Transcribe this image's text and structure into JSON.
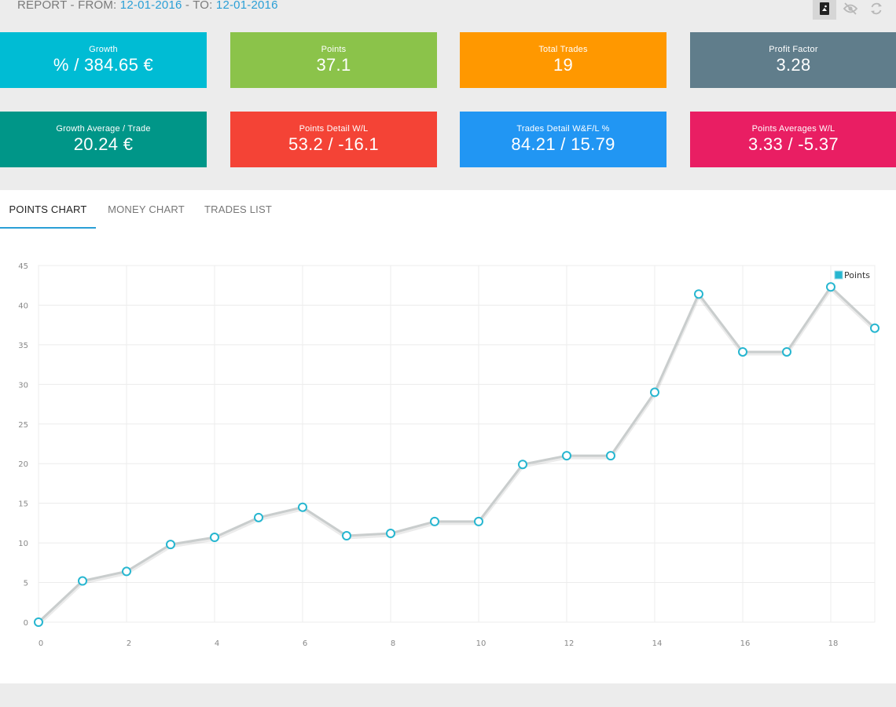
{
  "header": {
    "report_prefix": "REPORT - FROM:",
    "from_date": "12-01-2016",
    "to_label": "- TO:",
    "to_date": "12-01-2016"
  },
  "stats": [
    {
      "label": "Growth",
      "value": "% / 384.65 €",
      "color": "#00bcd4"
    },
    {
      "label": "Points",
      "value": "37.1",
      "color": "#8bc34a"
    },
    {
      "label": "Total Trades",
      "value": "19",
      "color": "#ff9800"
    },
    {
      "label": "Profit Factor",
      "value": "3.28",
      "color": "#607d8b"
    },
    {
      "label": "Growth Average / Trade",
      "value": "20.24 €",
      "color": "#009688"
    },
    {
      "label": "Points Detail W/L",
      "value": "53.2 / -16.1",
      "color": "#f44336"
    },
    {
      "label": "Trades Detail W&F/L %",
      "value": "84.21 / 15.79",
      "color": "#2196f3"
    },
    {
      "label": "Points Averages W/L",
      "value": "3.33 / -5.37",
      "color": "#e91e63"
    }
  ],
  "tabs": [
    {
      "label": "POINTS CHART",
      "active": true
    },
    {
      "label": "MONEY CHART",
      "active": false
    },
    {
      "label": "TRADES LIST",
      "active": false
    }
  ],
  "chart_data": {
    "type": "line",
    "series": [
      {
        "name": "Points",
        "x": [
          0,
          1,
          2,
          3,
          4,
          5,
          6,
          7,
          8,
          9,
          10,
          11,
          12,
          13,
          14,
          15,
          16,
          17,
          18,
          19
        ],
        "values": [
          0,
          5.2,
          6.4,
          9.8,
          10.7,
          13.2,
          14.5,
          10.9,
          11.2,
          12.7,
          12.7,
          19.9,
          21.0,
          21.0,
          29.0,
          41.4,
          34.1,
          34.1,
          42.3,
          37.1
        ],
        "color": "#26b6d0",
        "line_color": "#c9cdcd"
      }
    ],
    "xlim": [
      0,
      19
    ],
    "ylim": [
      0,
      45
    ],
    "xticks": [
      0,
      2,
      4,
      6,
      8,
      10,
      12,
      14,
      16,
      18
    ],
    "yticks": [
      0,
      5,
      10,
      15,
      20,
      25,
      30,
      35,
      40,
      45
    ],
    "grid": true,
    "legend": "top-right"
  }
}
